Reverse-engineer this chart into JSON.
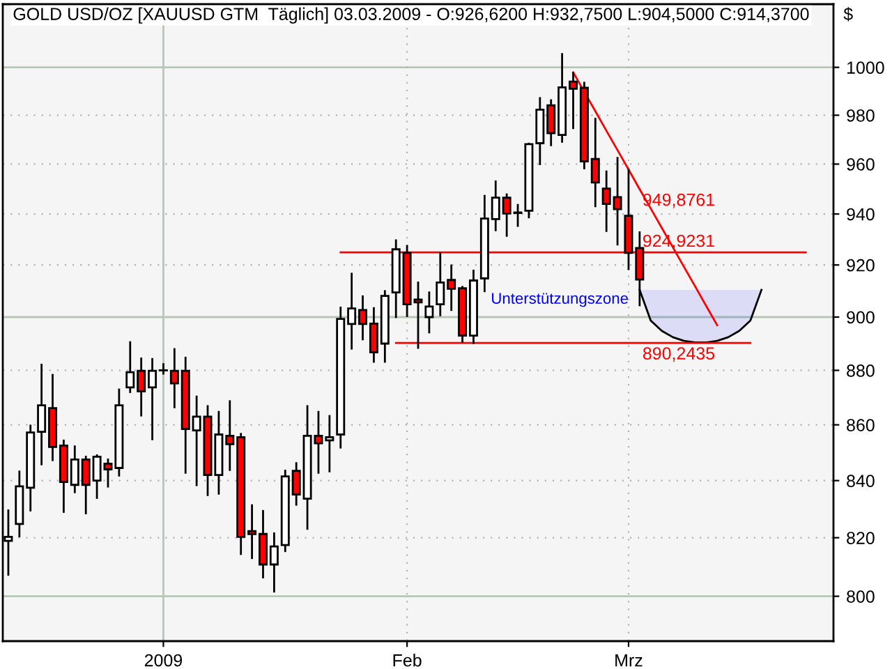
{
  "chart_data": {
    "type": "candlestick",
    "title": "GOLD USD/OZ [XAUUSD GTM  Täglich] 03.03.2009 - O:926,6200 H:932,7500 L:904,5000 C:914,3700",
    "ylabel": "$",
    "log": true,
    "grid": true,
    "legend": false,
    "ylim": [
      785,
      1027
    ],
    "yticks": [
      800,
      820,
      840,
      860,
      880,
      900,
      920,
      940,
      960,
      980,
      1000
    ],
    "categories": [
      null,
      null,
      null,
      null,
      null,
      null,
      null,
      null,
      null,
      null,
      null,
      null,
      null,
      null,
      "2009",
      null,
      null,
      null,
      null,
      null,
      null,
      null,
      null,
      null,
      null,
      null,
      null,
      null,
      null,
      null,
      null,
      null,
      null,
      null,
      null,
      null,
      "Feb",
      null,
      null,
      null,
      null,
      null,
      null,
      null,
      null,
      null,
      null,
      null,
      null,
      null,
      null,
      null,
      null,
      null,
      null,
      null,
      "Mrz",
      null,
      null,
      null,
      null,
      null,
      null,
      null,
      null,
      null,
      null,
      null,
      null,
      null,
      null,
      null,
      null,
      null,
      null
    ],
    "annotations": [
      "949,8761",
      {
        "text": "924,9231",
        "y": 924.9231
      },
      {
        "text": "890,2435",
        "y": 890.2435
      }
    ],
    "series": [
      {
        "type": "line",
        "name": "Unterstützungszone",
        "color": "#000000",
        "values": [
          null,
          null,
          null,
          null,
          null,
          null,
          null,
          null,
          null,
          null,
          null,
          null,
          null,
          null,
          null,
          null,
          null,
          null,
          null,
          null,
          null,
          null,
          null,
          null,
          null,
          null,
          null,
          null,
          null,
          null,
          null,
          null,
          null,
          null,
          null,
          null,
          null,
          null,
          null,
          null,
          null,
          null,
          null,
          null,
          null,
          null,
          null,
          null,
          null,
          null,
          null,
          null,
          null,
          null,
          null,
          null,
          null,
          910.4,
          898.7,
          894.8,
          892.4,
          891.0,
          890.4,
          890.4,
          891.0,
          892.4,
          894.8,
          898.7,
          910.4,
          null,
          null,
          null,
          null,
          null,
          null
        ],
        "upper": [
          null,
          null,
          null,
          null,
          null,
          null,
          null,
          null,
          null,
          null,
          null,
          null,
          null,
          null,
          null,
          null,
          null,
          null,
          null,
          null,
          null,
          null,
          null,
          null,
          null,
          null,
          null,
          null,
          null,
          null,
          null,
          null,
          null,
          null,
          null,
          null,
          null,
          null,
          null,
          null,
          null,
          null,
          null,
          null,
          null,
          null,
          null,
          null,
          null,
          null,
          null,
          null,
          null,
          null,
          null,
          null,
          null,
          910.4,
          910.4,
          910.4,
          910.4,
          910.4,
          910.4,
          910.4,
          910.4,
          910.4,
          910.4,
          910.4,
          910.4,
          null,
          null,
          null,
          null,
          null,
          null
        ],
        "lower": [
          null,
          null,
          null,
          null,
          null,
          null,
          null,
          null,
          null,
          null,
          null,
          null,
          null,
          null,
          null,
          null,
          null,
          null,
          null,
          null,
          null,
          null,
          null,
          null,
          null,
          null,
          null,
          null,
          null,
          null,
          null,
          null,
          null,
          null,
          null,
          null,
          null,
          null,
          null,
          null,
          null,
          null,
          null,
          null,
          null,
          null,
          null,
          null,
          null,
          null,
          null,
          null,
          null,
          null,
          null,
          null,
          null,
          910.4,
          898.7,
          894.8,
          892.4,
          891.0,
          890.4,
          890.4,
          891.0,
          892.4,
          894.8,
          898.7,
          910.4,
          null,
          null,
          null,
          null,
          null,
          null
        ]
      },
      {
        "type": "line",
        "color": "#ff0000",
        "values": [
          null,
          null,
          null,
          null,
          null,
          null,
          null,
          null,
          null,
          null,
          null,
          null,
          null,
          null,
          null,
          null,
          null,
          null,
          null,
          null,
          null,
          null,
          null,
          null,
          null,
          null,
          null,
          null,
          null,
          null,
          924.9231,
          924.9231,
          924.9231,
          924.9231,
          924.9231,
          924.9231,
          924.9231,
          924.9231,
          924.9231,
          924.9231,
          924.9231,
          924.9231,
          924.9231,
          924.9231,
          924.9231,
          924.9231,
          924.9231,
          924.9231,
          924.9231,
          924.9231,
          924.9231,
          924.9231,
          924.9231,
          924.9231,
          924.9231,
          924.9231,
          924.9231,
          924.9231,
          924.9231,
          924.9231,
          924.9231,
          924.9231,
          924.9231,
          924.9231,
          924.9231,
          924.9231,
          924.9231,
          924.9231,
          924.9231,
          924.9231,
          924.9231,
          924.9231,
          924.9231,
          null,
          null
        ]
      },
      {
        "type": "line",
        "color": "#ff0000",
        "values": [
          null,
          null,
          null,
          null,
          null,
          null,
          null,
          null,
          null,
          null,
          null,
          null,
          null,
          null,
          null,
          null,
          null,
          null,
          null,
          null,
          null,
          null,
          null,
          null,
          null,
          null,
          null,
          null,
          null,
          null,
          null,
          null,
          null,
          null,
          null,
          890.2435,
          890.2435,
          890.2435,
          890.2435,
          890.2435,
          890.2435,
          890.2435,
          890.2435,
          890.2435,
          890.2435,
          890.2435,
          890.2435,
          890.2435,
          890.2435,
          890.2435,
          890.2435,
          890.2435,
          890.2435,
          890.2435,
          890.2435,
          890.2435,
          890.2435,
          890.2435,
          890.2435,
          890.2435,
          890.2435,
          890.2435,
          890.2435,
          890.2435,
          890.2435,
          890.2435,
          890.2435,
          890.2435,
          null,
          null,
          null,
          null,
          null,
          null,
          null
        ]
      },
      {
        "type": "line",
        "color": "#ff0000",
        "values": [
          null,
          null,
          null,
          null,
          null,
          null,
          null,
          null,
          null,
          null,
          null,
          null,
          null,
          null,
          null,
          null,
          null,
          null,
          null,
          null,
          null,
          null,
          null,
          null,
          null,
          null,
          null,
          null,
          null,
          null,
          null,
          null,
          null,
          null,
          null,
          null,
          null,
          null,
          null,
          null,
          null,
          null,
          null,
          null,
          null,
          null,
          null,
          null,
          null,
          null,
          null,
          997.9,
          989.7,
          981.7,
          973.6,
          965.7,
          957.8,
          949.8761,
          942.2,
          934.5,
          926.9,
          919.3,
          911.8,
          904.3,
          896.9,
          null,
          null,
          null,
          null,
          null,
          null,
          null,
          null,
          null,
          null
        ]
      },
      {
        "ohlc": [
          [
            818.9,
            829.5,
            807.3,
            820.3
          ],
          [
            824.8,
            843.2,
            820.5,
            838.0
          ],
          [
            837.5,
            859.7,
            829.5,
            857.2
          ],
          [
            857.5,
            882.1,
            845.8,
            867.1
          ],
          [
            866.1,
            878.3,
            847.3,
            852.0
          ],
          [
            852.5,
            854.3,
            829.0,
            839.5
          ],
          [
            838.5,
            852.2,
            835.9,
            847.5
          ],
          [
            847.5,
            848.5,
            828.5,
            838.5
          ],
          [
            840.0,
            849.0,
            833.9,
            848.5
          ],
          [
            846.0,
            847.5,
            837.9,
            844.0
          ],
          [
            844.5,
            872.9,
            841.8,
            867.1
          ],
          [
            873.7,
            890.5,
            872.0,
            879.3
          ],
          [
            879.8,
            884.4,
            863.4,
            872.2
          ],
          [
            873.7,
            884.2,
            854.8,
            879.8
          ],
          [
            880.0,
            882.3,
            878.8,
            880.0
          ],
          [
            879.8,
            887.9,
            866.4,
            875.2
          ],
          [
            879.8,
            884.7,
            842.8,
            858.5
          ],
          [
            858.0,
            870.3,
            838.4,
            863.0
          ],
          [
            863.0,
            866.8,
            834.9,
            842.0
          ],
          [
            842.0,
            864.7,
            835.4,
            856.5
          ],
          [
            856.0,
            868.6,
            843.8,
            853.0
          ],
          [
            855.5,
            856.7,
            814.4,
            820.3
          ],
          [
            822.3,
            831.3,
            813.0,
            821.3
          ],
          [
            821.3,
            829.3,
            806.4,
            810.8
          ],
          [
            810.8,
            821.5,
            801.6,
            817.0
          ],
          [
            817.5,
            843.5,
            815.4,
            841.5
          ],
          [
            843.5,
            846.2,
            831.5,
            835.1
          ],
          [
            833.6,
            866.8,
            823.1,
            856.0
          ],
          [
            856.0,
            864.7,
            842.8,
            853.3
          ],
          [
            854.4,
            863.2,
            843.3,
            855.5
          ],
          [
            856.5,
            903.6,
            851.8,
            899.3
          ],
          [
            897.4,
            916.6,
            888.1,
            903.3
          ],
          [
            902.7,
            907.9,
            891.6,
            897.4
          ],
          [
            897.5,
            903.4,
            883.2,
            886.7
          ],
          [
            890.0,
            909.9,
            883.2,
            908.1
          ],
          [
            909.4,
            929.6,
            900.0,
            926.1
          ],
          [
            924.7,
            927.4,
            900.4,
            904.9
          ],
          [
            906.7,
            913.2,
            888.4,
            905.6
          ],
          [
            900.0,
            909.4,
            894.2,
            904.0
          ],
          [
            904.9,
            924.5,
            900.7,
            913.2
          ],
          [
            914.2,
            919.8,
            902.7,
            910.8
          ],
          [
            911.0,
            911.5,
            890.7,
            893.0
          ],
          [
            893.0,
            917.8,
            890.2,
            914.0
          ],
          [
            914.8,
            947.2,
            909.9,
            938.2
          ],
          [
            938.0,
            953.0,
            933.6,
            946.5
          ],
          [
            946.5,
            947.8,
            931.4,
            940.2
          ],
          [
            940.4,
            943.6,
            935.3,
            940.6
          ],
          [
            941.3,
            968.3,
            938.7,
            968.1
          ],
          [
            968.5,
            987.1,
            960.0,
            982.3
          ],
          [
            984.1,
            986.2,
            967.7,
            972.6
          ],
          [
            971.9,
            1005.6,
            969.1,
            991.6
          ],
          [
            994.0,
            997.7,
            974.7,
            991.0
          ],
          [
            991.4,
            993.5,
            958.3,
            961.1
          ],
          [
            962.1,
            978.5,
            943.1,
            952.6
          ],
          [
            950.1,
            957.0,
            933.3,
            944.0
          ],
          [
            946.7,
            962.5,
            928.0,
            941.9
          ],
          [
            939.3,
            957.7,
            918.4,
            924.7
          ],
          [
            926.62,
            932.75,
            904.5,
            914.37
          ],
          null,
          null,
          null,
          null,
          null,
          null,
          null,
          null,
          null,
          null,
          null,
          null,
          null,
          null,
          null,
          null,
          null
        ],
        "colors": [
          "#ffffff",
          "#ffffff",
          "#ffffff",
          "#ffffff",
          "#ff0000",
          "#ff0000",
          "#ffffff",
          "#ff0000",
          "#ffffff",
          "#ff0000",
          "#ffffff",
          "#ffffff",
          "#ff0000",
          "#ffffff",
          "#000000",
          "#ff0000",
          "#ff0000",
          "#ffffff",
          "#ff0000",
          "#ffffff",
          "#ff0000",
          "#ff0000",
          "#ff0000",
          "#ff0000",
          "#ffffff",
          "#ffffff",
          "#ff0000",
          "#ffffff",
          "#ff0000",
          "#ffffff",
          "#ffffff",
          "#ffffff",
          "#ff0000",
          "#ff0000",
          "#ffffff",
          "#ffffff",
          "#ff0000",
          "#ff0000",
          "#ffffff",
          "#ffffff",
          "#ff0000",
          "#ff0000",
          "#ffffff",
          "#ffffff",
          "#ffffff",
          "#ff0000",
          "#ffffff",
          "#ffffff",
          "#ffffff",
          "#ff0000",
          "#ffffff",
          "#ff0000",
          "#ff0000",
          "#ff0000",
          "#ff0000",
          "#ff0000",
          "#ff0000",
          "#ff0000",
          null,
          null,
          null,
          null,
          null,
          null,
          null,
          null,
          null,
          null,
          null,
          null,
          null,
          null,
          null,
          null,
          null
        ]
      }
    ]
  }
}
